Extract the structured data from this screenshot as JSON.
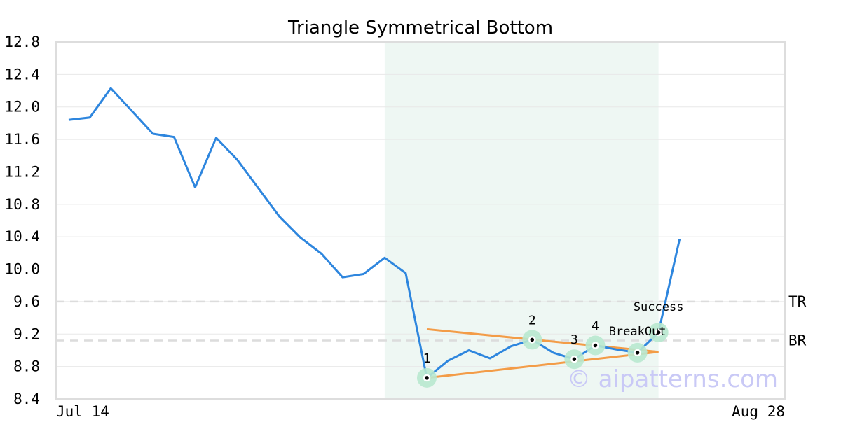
{
  "chart_data": {
    "type": "line",
    "title": "Triangle Symmetrical Bottom",
    "ylim": [
      8.4,
      12.8
    ],
    "yticks": [
      "12.8",
      "12.4",
      "12.0",
      "11.6",
      "11.2",
      "10.8",
      "10.4",
      "10.0",
      "9.6",
      "9.2",
      "8.8",
      "8.4"
    ],
    "xtick_labels": [
      "Jul 14",
      "Aug 28"
    ],
    "xlim": [
      0,
      34
    ],
    "grid": true,
    "series": [
      {
        "color": "#2e86de",
        "x": [
          0,
          1,
          2,
          3,
          4,
          5,
          6,
          7,
          8,
          9,
          10,
          11,
          12,
          13,
          14,
          15,
          16,
          17,
          18,
          19,
          20,
          21,
          22,
          23,
          24,
          25,
          26,
          27,
          28,
          29
        ],
        "y": [
          11.84,
          11.87,
          12.23,
          11.95,
          11.67,
          11.63,
          11.01,
          11.62,
          11.35,
          11.0,
          10.65,
          10.39,
          10.19,
          9.9,
          9.94,
          10.14,
          9.95,
          8.66,
          8.87,
          9.0,
          8.9,
          9.05,
          9.13,
          8.97,
          8.89,
          9.06,
          9.01,
          8.97,
          9.22,
          10.37
        ]
      }
    ],
    "pattern_region": {
      "x_start": 15,
      "x_end": 28,
      "color": "#eef7f3"
    },
    "reference_lines": [
      {
        "label": "TR",
        "y": 9.6
      },
      {
        "label": "BR",
        "y": 9.12
      }
    ],
    "trend_lines": [
      {
        "color": "#f39c47",
        "x": [
          17,
          28
        ],
        "y": [
          9.26,
          8.98
        ]
      },
      {
        "color": "#f39c47",
        "x": [
          17,
          28
        ],
        "y": [
          8.66,
          8.98
        ]
      }
    ],
    "points": [
      {
        "label": "1",
        "x": 17,
        "y": 8.66
      },
      {
        "label": "2",
        "x": 22,
        "y": 9.13
      },
      {
        "label": "3",
        "x": 24,
        "y": 8.89
      },
      {
        "label": "4",
        "x": 25,
        "y": 9.06
      },
      {
        "label": "",
        "x": 27,
        "y": 8.97
      },
      {
        "label": "",
        "x": 28,
        "y": 9.22
      }
    ],
    "annotations": [
      {
        "text": "Success",
        "x": 28,
        "y": 9.22
      },
      {
        "text": "BreakOut",
        "x": 27,
        "y": 8.97
      }
    ],
    "watermark": "© aipatterns.com"
  }
}
